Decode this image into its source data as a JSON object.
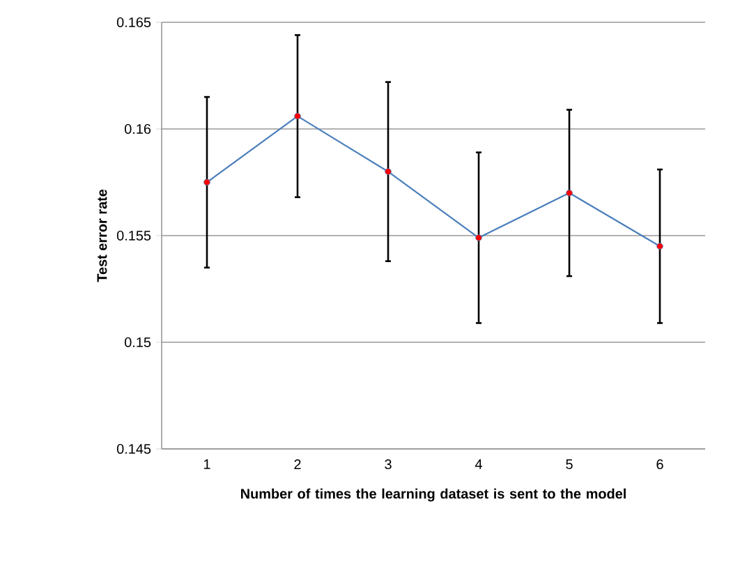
{
  "chart_data": {
    "type": "line",
    "xlabel": "Number of times the learning dataset is sent to the model",
    "ylabel": "Test error rate",
    "categories": [
      "1",
      "2",
      "3",
      "4",
      "5",
      "6"
    ],
    "series": [
      {
        "color": "#4a7ebb",
        "values": [
          0.1575,
          0.1606,
          0.158,
          0.1549,
          0.157,
          0.1545
        ],
        "errors": [
          0.004,
          0.0038,
          0.0042,
          0.004,
          0.0039,
          0.0036
        ]
      }
    ],
    "ylim": [
      0.145,
      0.165
    ],
    "yticks": [
      0.145,
      0.15,
      0.155,
      0.16,
      0.165
    ],
    "grid": "y",
    "marker": "circle",
    "line_style": "solid"
  }
}
